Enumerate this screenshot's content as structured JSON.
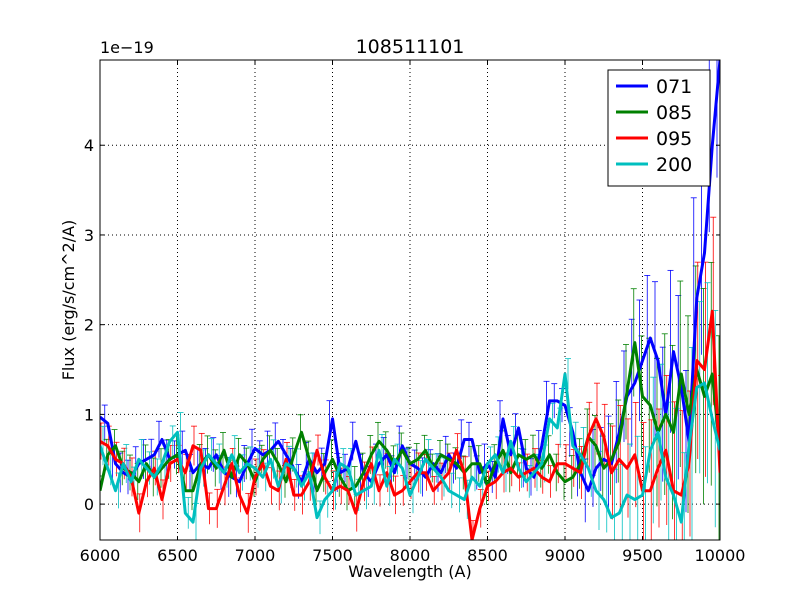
{
  "chart_data": {
    "type": "line",
    "title": "108511101",
    "xlabel": "Wavelength (A)",
    "ylabel": "Flux (erg/s/cm^2/A)",
    "offset_text": "1e−19",
    "xlim": [
      6000,
      10000
    ],
    "ylim": [
      -0.4,
      4.95
    ],
    "xticks": [
      6000,
      6500,
      7000,
      7500,
      8000,
      8500,
      9000,
      9500,
      10000
    ],
    "yticks": [
      0,
      1,
      2,
      3,
      4
    ],
    "grid": true,
    "legend_position": "top-right",
    "x": [
      6000,
      6050,
      6100,
      6150,
      6200,
      6250,
      6300,
      6350,
      6400,
      6450,
      6500,
      6550,
      6600,
      6650,
      6700,
      6750,
      6800,
      6850,
      6900,
      6950,
      7000,
      7050,
      7100,
      7150,
      7200,
      7250,
      7300,
      7350,
      7400,
      7450,
      7500,
      7550,
      7600,
      7650,
      7700,
      7750,
      7800,
      7850,
      7900,
      7950,
      8000,
      8050,
      8100,
      8150,
      8200,
      8250,
      8300,
      8350,
      8400,
      8450,
      8500,
      8550,
      8600,
      8650,
      8700,
      8750,
      8800,
      8850,
      8900,
      8950,
      9000,
      9050,
      9100,
      9150,
      9200,
      9250,
      9300,
      9350,
      9400,
      9450,
      9500,
      9550,
      9600,
      9650,
      9700,
      9750,
      9800,
      9850,
      9900,
      9950,
      10000
    ],
    "series": [
      {
        "name": "071",
        "color": "#0000ff",
        "values": [
          0.97,
          0.9,
          0.45,
          0.35,
          0.3,
          0.45,
          0.5,
          0.55,
          0.72,
          0.5,
          0.55,
          0.6,
          0.35,
          0.45,
          0.4,
          0.55,
          0.35,
          0.3,
          0.25,
          0.45,
          0.62,
          0.55,
          0.6,
          0.7,
          0.55,
          0.4,
          0.25,
          0.5,
          0.35,
          0.45,
          0.95,
          0.35,
          0.4,
          0.7,
          0.35,
          0.25,
          0.45,
          0.55,
          0.35,
          0.65,
          0.45,
          0.4,
          0.3,
          0.45,
          0.35,
          0.55,
          0.4,
          0.72,
          0.72,
          0.35,
          0.45,
          0.3,
          0.95,
          0.55,
          0.85,
          0.4,
          0.3,
          0.65,
          1.15,
          1.15,
          1.1,
          0.8,
          0.35,
          0.15,
          0.4,
          0.5,
          0.45,
          0.8,
          1.2,
          1.35,
          1.6,
          1.85,
          1.6,
          1.0,
          1.7,
          1.3,
          0.7,
          2.3,
          2.8,
          4.0,
          4.95
        ]
      },
      {
        "name": "085",
        "color": "#008000",
        "values": [
          0.15,
          0.55,
          0.65,
          0.4,
          0.35,
          0.25,
          0.45,
          0.3,
          0.4,
          0.5,
          0.55,
          0.15,
          0.15,
          0.45,
          0.55,
          0.4,
          0.6,
          0.3,
          0.55,
          0.45,
          0.25,
          0.5,
          0.6,
          0.45,
          0.25,
          0.55,
          0.8,
          0.5,
          0.15,
          0.35,
          0.5,
          0.3,
          0.15,
          0.2,
          0.35,
          0.55,
          0.7,
          0.6,
          0.45,
          0.6,
          0.45,
          0.5,
          0.6,
          0.4,
          0.55,
          0.5,
          0.45,
          0.35,
          0.45,
          0.45,
          0.2,
          0.45,
          0.6,
          0.35,
          0.55,
          0.5,
          0.55,
          0.4,
          0.55,
          0.35,
          0.25,
          0.3,
          0.45,
          0.75,
          0.65,
          0.4,
          0.5,
          0.7,
          1.25,
          1.8,
          1.2,
          1.1,
          0.8,
          1.0,
          0.8,
          1.45,
          1.0,
          1.5,
          1.2,
          1.45,
          0.6
        ]
      },
      {
        "name": "095",
        "color": "#ff0000",
        "values": [
          0.7,
          0.65,
          0.5,
          0.45,
          0.3,
          -0.1,
          0.25,
          0.4,
          0.05,
          0.45,
          0.5,
          0.35,
          0.65,
          0.6,
          -0.05,
          -0.05,
          0.2,
          0.45,
          0.1,
          -0.1,
          0.3,
          0.45,
          0.2,
          0.15,
          0.5,
          0.1,
          0.1,
          0.25,
          0.6,
          0.3,
          0.15,
          0.2,
          0.15,
          -0.1,
          0.25,
          0.45,
          0.15,
          0.35,
          0.1,
          0.15,
          0.25,
          0.35,
          0.35,
          0.15,
          0.25,
          0.35,
          0.6,
          0.35,
          -0.4,
          -0.05,
          0.2,
          0.25,
          0.35,
          0.4,
          0.3,
          0.35,
          0.4,
          0.3,
          0.25,
          0.45,
          0.45,
          0.4,
          0.35,
          0.75,
          0.95,
          0.75,
          0.35,
          0.5,
          0.4,
          0.55,
          0.15,
          0.15,
          0.4,
          0.6,
          0.15,
          0.1,
          0.45,
          1.6,
          1.5,
          2.15,
          0.35
        ]
      },
      {
        "name": "200",
        "color": "#00bfbf",
        "values": [
          0.65,
          0.4,
          0.15,
          0.45,
          0.25,
          0.5,
          0.4,
          0.3,
          0.45,
          0.7,
          0.8,
          -0.1,
          -0.2,
          0.4,
          0.55,
          0.45,
          0.35,
          0.55,
          0.35,
          0.45,
          0.4,
          0.3,
          0.5,
          0.2,
          0.45,
          0.4,
          0.2,
          0.35,
          -0.15,
          0.05,
          0.15,
          0.45,
          0.4,
          0.1,
          0.15,
          0.2,
          0.6,
          0.2,
          0.5,
          0.4,
          0.1,
          0.3,
          0.5,
          0.4,
          0.3,
          0.15,
          0.1,
          0.05,
          0.3,
          0.2,
          0.45,
          0.55,
          0.35,
          0.7,
          0.4,
          0.25,
          0.35,
          0.45,
          0.95,
          0.85,
          1.45,
          0.65,
          0.55,
          0.4,
          0.15,
          0.05,
          -0.15,
          -0.1,
          0.1,
          0.05,
          0.1,
          0.6,
          0.8,
          0.3,
          0.1,
          -0.2,
          0.65,
          1.3,
          1.35,
          0.95,
          0.6
        ]
      }
    ]
  }
}
